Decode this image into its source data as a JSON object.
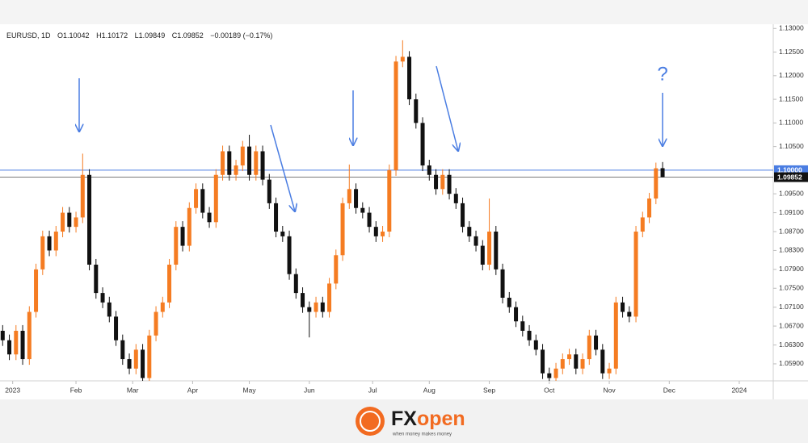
{
  "chart_data": {
    "type": "candlestick",
    "legend": {
      "symbol": "EURUSD, 1D",
      "open": "O1.10042",
      "high": "H1.10172",
      "low": "L1.09849",
      "close": "C1.09852",
      "change": "−0.00189 (−0.17%)"
    },
    "up_color": "#f57c22",
    "down_color": "#111111",
    "categories": [
      null,
      null,
      null,
      null,
      null,
      null,
      null,
      null,
      null,
      null,
      null,
      null,
      null,
      null,
      null,
      null,
      null,
      null,
      null,
      null,
      null,
      null,
      null,
      null,
      null,
      null,
      null,
      null,
      null,
      null,
      null,
      null,
      null,
      null,
      null,
      null,
      null,
      null,
      null,
      null,
      null,
      null,
      null,
      null,
      null,
      null,
      null,
      null,
      null,
      null,
      null,
      null,
      null,
      null,
      null,
      null,
      null,
      null,
      null,
      null,
      null,
      null,
      null,
      null,
      null,
      null,
      null,
      null,
      null,
      null,
      null,
      null,
      null,
      null,
      null,
      null,
      null,
      null,
      null,
      null,
      null,
      null,
      null,
      null,
      null,
      null,
      null,
      null,
      null,
      null,
      null,
      null,
      null,
      null,
      null,
      null,
      null,
      null,
      null,
      null
    ],
    "open": [
      1.066,
      1.064,
      1.061,
      1.066,
      1.06,
      1.07,
      1.079,
      1.086,
      1.083,
      1.087,
      1.091,
      1.088,
      1.09,
      1.099,
      1.08,
      1.074,
      1.072,
      1.069,
      1.064,
      1.06,
      1.058,
      1.062,
      1.056,
      1.065,
      1.07,
      1.072,
      1.08,
      1.088,
      1.084,
      1.092,
      1.096,
      1.091,
      1.089,
      1.099,
      1.104,
      1.099,
      1.101,
      1.105,
      1.099,
      1.104,
      1.098,
      1.093,
      1.087,
      1.086,
      1.078,
      1.074,
      1.071,
      1.07,
      1.072,
      1.07,
      1.076,
      1.082,
      1.093,
      1.096,
      1.092,
      1.091,
      1.088,
      1.086,
      1.087,
      1.1,
      1.123,
      1.124,
      1.115,
      1.11,
      1.101,
      1.099,
      1.096,
      1.099,
      1.095,
      1.093,
      1.088,
      1.086,
      1.084,
      1.08,
      1.087,
      1.079,
      1.073,
      1.071,
      1.068,
      1.066,
      1.064,
      1.062,
      1.057,
      1.056,
      1.058,
      1.06,
      1.061,
      1.058,
      1.06,
      1.065,
      1.062,
      1.057,
      1.058,
      1.072,
      1.07,
      1.069,
      1.087,
      1.09,
      1.094,
      1.10042
    ],
    "high": [
      1.0672,
      1.0652,
      1.0672,
      1.0672,
      1.0712,
      1.0802,
      1.0872,
      1.0872,
      1.0882,
      1.0922,
      1.0922,
      1.0912,
      1.1035,
      1.1002,
      1.0812,
      1.0752,
      1.0732,
      1.0702,
      1.0652,
      1.0612,
      1.0632,
      1.0632,
      1.0662,
      1.0712,
      1.0732,
      1.0812,
      1.0892,
      1.0892,
      1.0932,
      1.0972,
      1.0972,
      1.0922,
      1.1002,
      1.1052,
      1.1052,
      1.1022,
      1.1062,
      1.1075,
      1.1052,
      1.1052,
      1.0992,
      1.0942,
      1.0882,
      1.0872,
      1.0792,
      1.0752,
      1.0722,
      1.0732,
      1.0732,
      1.0772,
      1.0832,
      1.0942,
      1.1012,
      1.0972,
      1.0932,
      1.0922,
      1.0892,
      1.0882,
      1.1012,
      1.1242,
      1.1275,
      1.1252,
      1.1162,
      1.1112,
      1.1022,
      1.1002,
      1.1002,
      1.1002,
      1.0962,
      1.0942,
      1.0892,
      1.0872,
      1.0852,
      1.094,
      1.0882,
      1.0802,
      1.0742,
      1.0722,
      1.0692,
      1.0672,
      1.0652,
      1.0632,
      1.0582,
      1.0592,
      1.0612,
      1.0622,
      1.0622,
      1.0612,
      1.0662,
      1.0662,
      1.0632,
      1.0592,
      1.0732,
      1.0732,
      1.0712,
      1.0882,
      1.0912,
      1.0952,
      1.1016,
      1.10172
    ],
    "low": [
      1.0628,
      1.0598,
      1.0598,
      1.0588,
      1.0588,
      1.0688,
      1.0778,
      1.0818,
      1.0818,
      1.0858,
      1.0868,
      1.0868,
      1.0888,
      1.0788,
      1.0728,
      1.0708,
      1.0678,
      1.0628,
      1.0588,
      1.0568,
      1.0568,
      1.0548,
      1.0548,
      1.0638,
      1.0688,
      1.0708,
      1.0788,
      1.0828,
      1.0828,
      1.0908,
      1.0898,
      1.0878,
      1.0878,
      1.0978,
      1.0978,
      1.0978,
      1.0998,
      1.0978,
      1.0978,
      1.0968,
      1.0918,
      1.0858,
      1.0848,
      1.0768,
      1.0728,
      1.0698,
      1.0646,
      1.0688,
      1.0688,
      1.0688,
      1.0748,
      1.0808,
      1.0918,
      1.0908,
      1.0898,
      1.0868,
      1.0848,
      1.0848,
      1.0858,
      1.0988,
      1.1218,
      1.1138,
      1.1088,
      1.0998,
      1.0978,
      1.0948,
      1.0948,
      1.0938,
      1.0918,
      1.0868,
      1.0848,
      1.0828,
      1.0788,
      1.0788,
      1.0778,
      1.0718,
      1.0698,
      1.0668,
      1.0648,
      1.0628,
      1.0608,
      1.0558,
      1.0548,
      1.0548,
      1.0568,
      1.0588,
      1.0568,
      1.0568,
      1.0588,
      1.0608,
      1.0558,
      1.0558,
      1.0568,
      1.0688,
      1.0678,
      1.0678,
      1.0858,
      1.0888,
      1.0928,
      1.09849
    ],
    "close": [
      1.064,
      1.061,
      1.066,
      1.06,
      1.07,
      1.079,
      1.086,
      1.083,
      1.087,
      1.091,
      1.088,
      1.09,
      1.099,
      1.08,
      1.074,
      1.072,
      1.069,
      1.064,
      1.06,
      1.058,
      1.062,
      1.056,
      1.065,
      1.07,
      1.072,
      1.08,
      1.088,
      1.084,
      1.092,
      1.096,
      1.091,
      1.089,
      1.099,
      1.104,
      1.099,
      1.101,
      1.105,
      1.099,
      1.104,
      1.098,
      1.093,
      1.087,
      1.086,
      1.078,
      1.074,
      1.071,
      1.07,
      1.072,
      1.07,
      1.076,
      1.082,
      1.093,
      1.096,
      1.092,
      1.091,
      1.088,
      1.086,
      1.087,
      1.1,
      1.123,
      1.124,
      1.115,
      1.11,
      1.101,
      1.099,
      1.096,
      1.099,
      1.095,
      1.093,
      1.088,
      1.086,
      1.084,
      1.08,
      1.087,
      1.079,
      1.073,
      1.071,
      1.068,
      1.066,
      1.064,
      1.062,
      1.057,
      1.056,
      1.058,
      1.06,
      1.061,
      1.058,
      1.06,
      1.065,
      1.062,
      1.057,
      1.058,
      1.072,
      1.07,
      1.069,
      1.087,
      1.09,
      1.094,
      1.1004,
      1.09852
    ],
    "xlim": [
      -0.4,
      115.6
    ],
    "xticks": [
      {
        "value": 1.5,
        "label": "2023"
      },
      {
        "value": 11,
        "label": "Feb"
      },
      {
        "value": 19.5,
        "label": "Mar"
      },
      {
        "value": 28.5,
        "label": "Apr"
      },
      {
        "value": 37,
        "label": "May"
      },
      {
        "value": 46,
        "label": "Jun"
      },
      {
        "value": 55.5,
        "label": "Jul"
      },
      {
        "value": 64,
        "label": "Aug"
      },
      {
        "value": 73,
        "label": "Sep"
      },
      {
        "value": 82,
        "label": "Oct"
      },
      {
        "value": 91,
        "label": "Nov"
      },
      {
        "value": 100,
        "label": "Dec"
      },
      {
        "value": 110.5,
        "label": "2024"
      }
    ],
    "ylim": [
      1.0554,
      1.1309
    ],
    "yticks": [
      {
        "value": 1.13,
        "label": "1.13000"
      },
      {
        "value": 1.125,
        "label": "1.12500"
      },
      {
        "value": 1.12,
        "label": "1.12000"
      },
      {
        "value": 1.115,
        "label": "1.11500"
      },
      {
        "value": 1.11,
        "label": "1.11000"
      },
      {
        "value": 1.105,
        "label": "1.10500"
      },
      {
        "value": 1.095,
        "label": "1.09500"
      },
      {
        "value": 1.091,
        "label": "1.09100"
      },
      {
        "value": 1.087,
        "label": "1.08700"
      },
      {
        "value": 1.083,
        "label": "1.08300"
      },
      {
        "value": 1.079,
        "label": "1.07900"
      },
      {
        "value": 1.075,
        "label": "1.07500"
      },
      {
        "value": 1.071,
        "label": "1.07100"
      },
      {
        "value": 1.067,
        "label": "1.06700"
      },
      {
        "value": 1.063,
        "label": "1.06300"
      },
      {
        "value": 1.059,
        "label": "1.05900"
      }
    ],
    "grid": false,
    "hlines": [
      {
        "value": 1.1,
        "label": "1.10000",
        "color": "#4a7de2"
      },
      {
        "value": 1.09852,
        "label": "1.09852",
        "color": "#111111"
      }
    ],
    "annotations": [
      {
        "text": "?"
      }
    ]
  },
  "footer": {
    "brand_left": "FX",
    "brand_right": "open",
    "tagline": "when money makes money"
  }
}
